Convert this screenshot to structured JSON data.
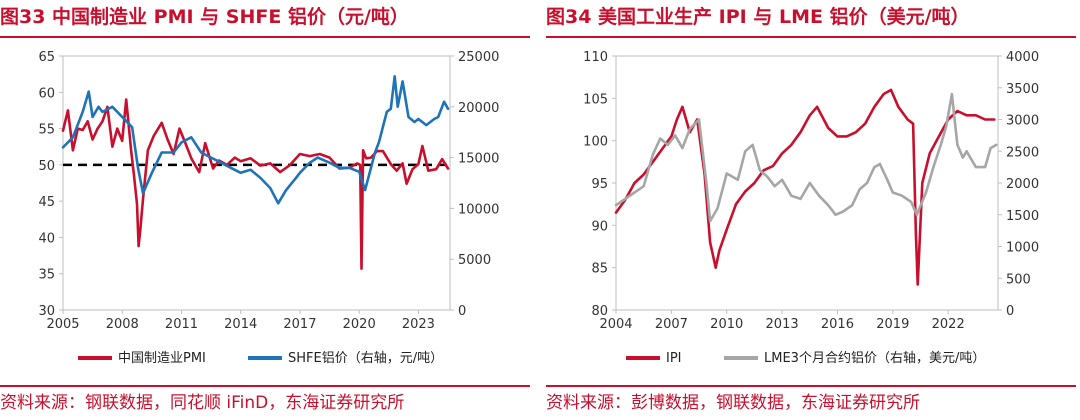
{
  "colors": {
    "accent": "#c8102e",
    "blue": "#1f73b7",
    "gray": "#a6a6a6",
    "black": "#000000"
  },
  "left": {
    "title": "图33  中国制造业 PMI 与 SHFE 铝价（元/吨）",
    "source": "资料来源：钢联数据，同花顺 iFinD，东海证券研究所"
  },
  "right": {
    "title": "图34  美国工业生产 IPI 与 LME 铝价（美元/吨）",
    "source": "资料来源：彭博数据，钢联数据，东海证券研究所"
  },
  "chart_data": [
    {
      "type": "line",
      "title": "图33  中国制造业 PMI 与 SHFE 铝价（元/吨）",
      "x_ticks": [
        2005,
        2008,
        2011,
        2014,
        2017,
        2020,
        2023
      ],
      "x_tick_labels": [
        "2005",
        "2008",
        "2011",
        "2014",
        "2017",
        "2020",
        "2023"
      ],
      "xlim": [
        2005,
        2024.6
      ],
      "y_left": {
        "ylim": [
          30,
          65
        ],
        "ticks": [
          30,
          35,
          40,
          45,
          50,
          55,
          60,
          65
        ],
        "tick_labels": [
          "30",
          "35",
          "40",
          "45",
          "50",
          "55",
          "60",
          "65"
        ]
      },
      "y_right": {
        "ylim": [
          0,
          25000
        ],
        "ticks": [
          0,
          5000,
          10000,
          15000,
          20000,
          25000
        ],
        "tick_labels": [
          "0",
          "5000",
          "10000",
          "15000",
          "20000",
          "25000"
        ]
      },
      "reference_line": {
        "y": 50,
        "axis": "left",
        "style": "dashed"
      },
      "legend_position": "bottom",
      "grid": false,
      "series": [
        {
          "name": "中国制造业PMI",
          "axis": "left",
          "color": "#c8102e",
          "x": [
            2005,
            2005.25,
            2005.5,
            2005.75,
            2006,
            2006.25,
            2006.5,
            2006.75,
            2007,
            2007.25,
            2007.5,
            2007.75,
            2008,
            2008.2,
            2008.45,
            2008.6,
            2008.75,
            2008.83,
            2008.92,
            2009.05,
            2009.3,
            2009.6,
            2010,
            2010.3,
            2010.6,
            2010.9,
            2011.2,
            2011.5,
            2011.9,
            2012.2,
            2012.6,
            2012.9,
            2013.3,
            2013.7,
            2014,
            2014.5,
            2015,
            2015.5,
            2016,
            2016.5,
            2017,
            2017.5,
            2018,
            2018.5,
            2019,
            2019.5,
            2019.9,
            2020.05,
            2020.12,
            2020.2,
            2020.35,
            2020.6,
            2020.9,
            2021.2,
            2021.6,
            2021.9,
            2022.2,
            2022.4,
            2022.7,
            2023,
            2023.2,
            2023.5,
            2023.9,
            2024.2,
            2024.5
          ],
          "values": [
            54.7,
            57.5,
            52,
            55,
            54.8,
            56,
            53.5,
            55,
            56,
            58,
            52.5,
            55,
            53.3,
            59,
            52,
            48.4,
            44.6,
            38.8,
            41.2,
            45.3,
            52,
            54,
            55.8,
            53.5,
            51.5,
            55,
            53,
            50.9,
            49,
            53,
            49.5,
            50.6,
            50,
            51,
            50.5,
            50.9,
            49.9,
            50.2,
            49,
            50,
            51.5,
            51.2,
            51.5,
            51,
            49.5,
            49.6,
            50.2,
            50,
            35.7,
            52,
            50.9,
            51,
            51.9,
            51.9,
            50.1,
            49.2,
            50.2,
            47.4,
            49.4,
            50.1,
            52.6,
            49.2,
            49.4,
            50.8,
            49.5
          ]
        },
        {
          "name": "SHFE铝价（右轴，元/吨）",
          "axis": "right",
          "color": "#1f73b7",
          "x": [
            2005,
            2005.5,
            2006,
            2006.3,
            2006.5,
            2006.8,
            2007,
            2007.5,
            2008,
            2008.5,
            2008.8,
            2009.05,
            2009.5,
            2010,
            2010.6,
            2011,
            2011.5,
            2012,
            2012.5,
            2013,
            2013.5,
            2014,
            2014.5,
            2015,
            2015.5,
            2015.9,
            2016.3,
            2016.8,
            2017,
            2017.5,
            2017.9,
            2018.5,
            2019,
            2019.5,
            2020,
            2020.3,
            2020.8,
            2021,
            2021.4,
            2021.6,
            2021.8,
            2021.95,
            2022.2,
            2022.5,
            2022.8,
            2023,
            2023.4,
            2023.8,
            2024,
            2024.3,
            2024.5
          ],
          "values": [
            16000,
            17000,
            19500,
            21500,
            19000,
            20000,
            19500,
            20000,
            19000,
            18000,
            14000,
            11500,
            13500,
            15500,
            15500,
            16500,
            17000,
            15500,
            15000,
            14500,
            14000,
            13500,
            13800,
            13000,
            12000,
            10500,
            11800,
            13000,
            13500,
            14500,
            15000,
            14500,
            14000,
            14000,
            13600,
            11800,
            15500,
            16500,
            19500,
            19800,
            23000,
            20000,
            22500,
            19000,
            18500,
            18800,
            18200,
            18800,
            19000,
            20500,
            19800
          ]
        }
      ]
    },
    {
      "type": "line",
      "title": "图34  美国工业生产 IPI 与 LME 铝价（美元/吨）",
      "x_ticks": [
        2004,
        2007,
        2010,
        2013,
        2016,
        2019,
        2022
      ],
      "x_tick_labels": [
        "2004",
        "2007",
        "2010",
        "2013",
        "2016",
        "2019",
        "2022"
      ],
      "xlim": [
        2004,
        2024.7
      ],
      "y_left": {
        "ylim": [
          80,
          110
        ],
        "ticks": [
          80,
          85,
          90,
          95,
          100,
          105,
          110
        ],
        "tick_labels": [
          "80",
          "85",
          "90",
          "95",
          "100",
          "105",
          "110"
        ]
      },
      "y_right": {
        "ylim": [
          0,
          4000
        ],
        "ticks": [
          0,
          500,
          1000,
          1500,
          2000,
          2500,
          3000,
          3500,
          4000
        ],
        "tick_labels": [
          "0",
          "500",
          "1000",
          "1500",
          "2000",
          "2500",
          "3000",
          "3500",
          "4000"
        ]
      },
      "legend_position": "bottom",
      "grid": false,
      "series": [
        {
          "name": "IPI",
          "axis": "left",
          "color": "#c8102e",
          "x": [
            2004,
            2004.5,
            2005,
            2005.5,
            2006,
            2006.5,
            2007,
            2007.3,
            2007.6,
            2008,
            2008.4,
            2008.8,
            2009.1,
            2009.4,
            2009.6,
            2010,
            2010.5,
            2011,
            2011.5,
            2012,
            2012.5,
            2013,
            2013.5,
            2014,
            2014.5,
            2014.9,
            2015.5,
            2016,
            2016.5,
            2017,
            2017.5,
            2018,
            2018.5,
            2018.9,
            2019.3,
            2019.8,
            2020.1,
            2020.25,
            2020.35,
            2020.6,
            2021,
            2021.5,
            2022,
            2022.5,
            2023,
            2023.5,
            2024,
            2024.5
          ],
          "values": [
            91.5,
            93,
            95,
            96,
            97.5,
            99,
            100.5,
            102.5,
            104,
            101,
            102.5,
            96,
            88,
            85,
            87,
            89.5,
            92.5,
            94,
            95,
            96.5,
            97,
            98.5,
            99.5,
            101,
            103,
            104,
            101.5,
            100.5,
            100.5,
            101,
            102,
            104,
            105.5,
            106,
            104,
            102.5,
            102,
            89,
            83,
            95,
            98.5,
            100.5,
            102.5,
            103.5,
            103,
            103,
            102.5,
            102.5
          ]
        },
        {
          "name": "LME3个月合约铝价（右轴，美元/吨）",
          "axis": "right",
          "color": "#a6a6a6",
          "x": [
            2004,
            2004.5,
            2005,
            2005.5,
            2006,
            2006.4,
            2006.8,
            2007.2,
            2007.6,
            2008,
            2008.5,
            2008.9,
            2009.1,
            2009.5,
            2010,
            2010.6,
            2011,
            2011.4,
            2011.8,
            2012.2,
            2012.6,
            2013,
            2013.5,
            2014,
            2014.5,
            2015,
            2015.5,
            2015.9,
            2016.3,
            2016.8,
            2017.2,
            2017.6,
            2018.0,
            2018.3,
            2018.7,
            2019,
            2019.5,
            2020,
            2020.3,
            2020.8,
            2021.2,
            2021.6,
            2021.9,
            2022.2,
            2022.5,
            2022.8,
            2023,
            2023.5,
            2024,
            2024.3,
            2024.6
          ],
          "values": [
            1650,
            1750,
            1850,
            1950,
            2450,
            2700,
            2600,
            2750,
            2550,
            2850,
            3000,
            2000,
            1400,
            1600,
            2150,
            2050,
            2500,
            2600,
            2200,
            2100,
            1950,
            2050,
            1800,
            1750,
            2000,
            1800,
            1650,
            1500,
            1550,
            1650,
            1900,
            2000,
            2250,
            2300,
            2050,
            1850,
            1800,
            1700,
            1500,
            1850,
            2250,
            2600,
            2900,
            3400,
            2600,
            2400,
            2500,
            2250,
            2250,
            2550,
            2600
          ]
        }
      ]
    }
  ]
}
